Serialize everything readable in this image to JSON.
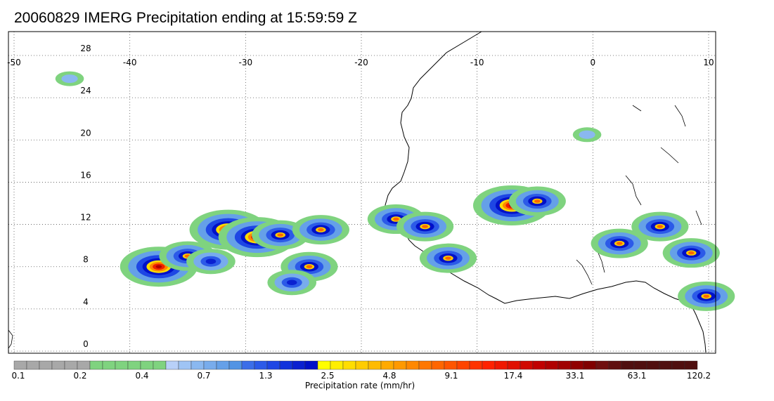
{
  "title": "20060829 IMERG Precipitation ending at 15:59:59 Z",
  "map": {
    "lon_range": [
      -50,
      10
    ],
    "lat_range": [
      -1,
      29
    ],
    "lon_ticks": [
      "-50",
      "-40",
      "-30",
      "-20",
      "-10",
      "0",
      "10"
    ],
    "lat_ticks": [
      "28",
      "24",
      "20",
      "16",
      "12",
      "8",
      "4",
      "0"
    ],
    "grid": "dotted"
  },
  "colorbar": {
    "title": "Precipitation rate (mm/hr)",
    "labels": [
      "0.1",
      "0.2",
      "0.4",
      "0.7",
      "1.3",
      "2.5",
      "4.8",
      "9.1",
      "17.4",
      "33.1",
      "63.1",
      "120.2"
    ],
    "colors": [
      "#a8a8a8",
      "#a8a8a8",
      "#a8a8a8",
      "#a8a8a8",
      "#a8a8a8",
      "#a8a8a8",
      "#7fd37f",
      "#7fd37f",
      "#7fd37f",
      "#7fd37f",
      "#7fd37f",
      "#7fd37f",
      "#b8d0f8",
      "#9fc4f4",
      "#8ab8f0",
      "#78acec",
      "#65a0e8",
      "#5294e4",
      "#3c6ee8",
      "#2c5ae8",
      "#1e46e4",
      "#1032dc",
      "#0a20d0",
      "#0010c8",
      "#ffff00",
      "#ffee00",
      "#ffdd00",
      "#ffcc00",
      "#ffbb00",
      "#ffaa00",
      "#ff9900",
      "#ff8800",
      "#ff7700",
      "#ff6600",
      "#ff5500",
      "#ff4400",
      "#ff3300",
      "#ff2200",
      "#f01800",
      "#e01000",
      "#d00800",
      "#c00000",
      "#b00000",
      "#a00000",
      "#900000",
      "#800000",
      "#701010",
      "#601010",
      "#501010",
      "#501010",
      "#501010",
      "#501010",
      "#501010",
      "#501010"
    ]
  },
  "precip_cells": [
    {
      "lon": -31.5,
      "lat": 11.5,
      "intensity": "heavy"
    },
    {
      "lon": -29,
      "lat": 10.8,
      "intensity": "heavy"
    },
    {
      "lon": -27,
      "lat": 11,
      "intensity": "strong"
    },
    {
      "lon": -37.5,
      "lat": 8,
      "intensity": "heavy"
    },
    {
      "lon": -35,
      "lat": 9,
      "intensity": "strong"
    },
    {
      "lon": -33,
      "lat": 8.5,
      "intensity": "moderate"
    },
    {
      "lon": -24.5,
      "lat": 8,
      "intensity": "strong"
    },
    {
      "lon": -23.5,
      "lat": 11.5,
      "intensity": "strong"
    },
    {
      "lon": -26,
      "lat": 6.5,
      "intensity": "moderate"
    },
    {
      "lon": -17,
      "lat": 12.5,
      "intensity": "strong"
    },
    {
      "lon": -14.5,
      "lat": 11.8,
      "intensity": "strong"
    },
    {
      "lon": -12.5,
      "lat": 8.8,
      "intensity": "strong"
    },
    {
      "lon": -7,
      "lat": 13.8,
      "intensity": "heavy"
    },
    {
      "lon": -4.8,
      "lat": 14.2,
      "intensity": "strong"
    },
    {
      "lon": 5.8,
      "lat": 11.8,
      "intensity": "strong"
    },
    {
      "lon": 8.5,
      "lat": 9.3,
      "intensity": "strong"
    },
    {
      "lon": 2.3,
      "lat": 10.2,
      "intensity": "strong"
    },
    {
      "lon": 9.8,
      "lat": 5.2,
      "intensity": "strong"
    },
    {
      "lon": -45.2,
      "lat": 25.8,
      "intensity": "light"
    },
    {
      "lon": -0.5,
      "lat": 20.5,
      "intensity": "light"
    }
  ]
}
